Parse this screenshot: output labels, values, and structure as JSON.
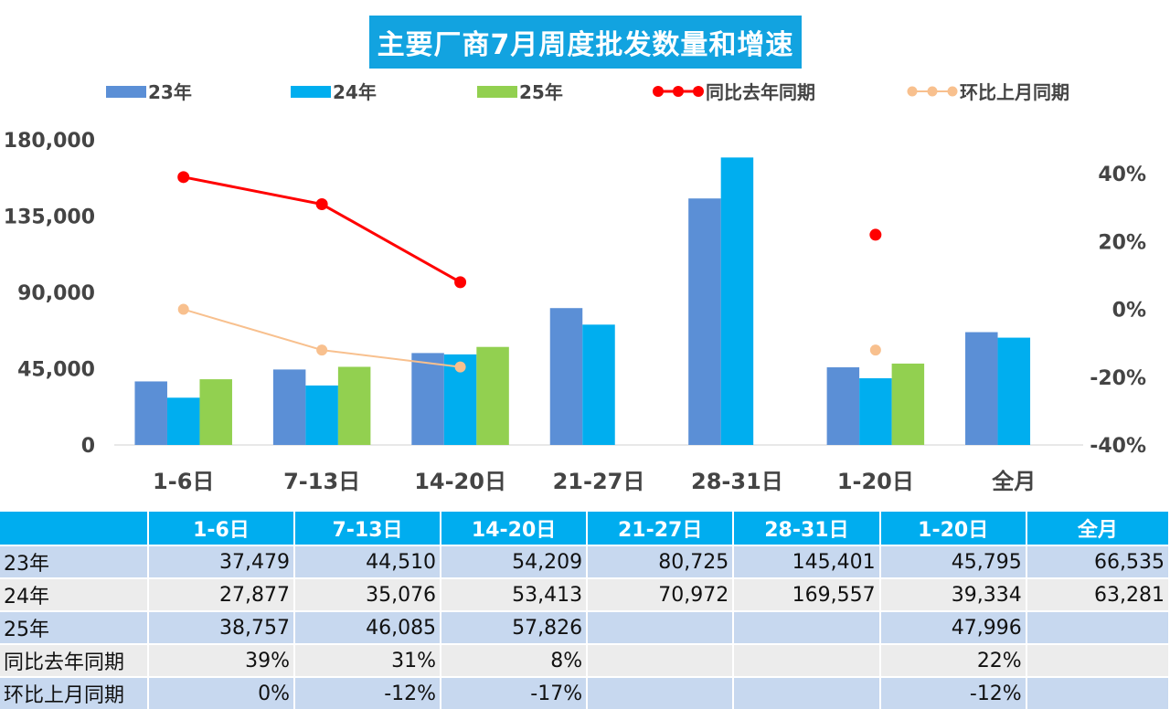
{
  "chart_data": {
    "type": "bar",
    "title": "主要厂商7月周度批发数量和增速",
    "categories": [
      "1-6日",
      "7-13日",
      "14-20日",
      "21-27日",
      "28-31日",
      "1-20日",
      "全月"
    ],
    "series": [
      {
        "name": "23年",
        "kind": "bar",
        "color": "#5b8fd6",
        "values": [
          37479,
          44510,
          54209,
          80725,
          145401,
          45795,
          66535
        ]
      },
      {
        "name": "24年",
        "kind": "bar",
        "color": "#00aeef",
        "values": [
          27877,
          35076,
          53413,
          70972,
          169557,
          39334,
          63281
        ]
      },
      {
        "name": "25年",
        "kind": "bar",
        "color": "#92d050",
        "values": [
          38757,
          46085,
          57826,
          null,
          null,
          47996,
          null
        ]
      },
      {
        "name": "同比去年同期",
        "kind": "line",
        "axis": "right",
        "color": "#ff0000",
        "values": [
          39,
          31,
          8,
          null,
          null,
          22,
          null
        ]
      },
      {
        "name": "环比上月同期",
        "kind": "line",
        "axis": "right",
        "color": "#f8c08e",
        "values": [
          0,
          -12,
          -17,
          null,
          null,
          -12,
          null
        ]
      }
    ],
    "left_axis": {
      "ylim": [
        0,
        180000
      ],
      "ticks": [
        "0",
        "45,000",
        "90,000",
        "135,000",
        "180,000"
      ],
      "tick_values": [
        0,
        45000,
        90000,
        135000,
        180000
      ]
    },
    "right_axis": {
      "ylim": [
        -40,
        50
      ],
      "ticks": [
        "-40%",
        "-20%",
        "0%",
        "20%",
        "40%"
      ],
      "tick_values": [
        -40,
        -20,
        0,
        20,
        40
      ]
    },
    "legend_position": "top",
    "grid": false
  },
  "table": {
    "headers": [
      "",
      "1-6日",
      "7-13日",
      "14-20日",
      "21-27日",
      "28-31日",
      "1-20日",
      "全月"
    ],
    "rows": [
      {
        "label": "23年",
        "cells": [
          "37,479",
          "44,510",
          "54,209",
          "80,725",
          "145,401",
          "45,795",
          "66,535"
        ]
      },
      {
        "label": "24年",
        "cells": [
          "27,877",
          "35,076",
          "53,413",
          "70,972",
          "169,557",
          "39,334",
          "63,281"
        ]
      },
      {
        "label": "25年",
        "cells": [
          "38,757",
          "46,085",
          "57,826",
          "",
          "",
          "47,996",
          ""
        ]
      },
      {
        "label": "同比去年同期",
        "cells": [
          "39%",
          "31%",
          "8%",
          "",
          "",
          "22%",
          ""
        ]
      },
      {
        "label": "环比上月同期",
        "cells": [
          "0%",
          "-12%",
          "-17%",
          "",
          "",
          "-12%",
          ""
        ]
      }
    ]
  }
}
